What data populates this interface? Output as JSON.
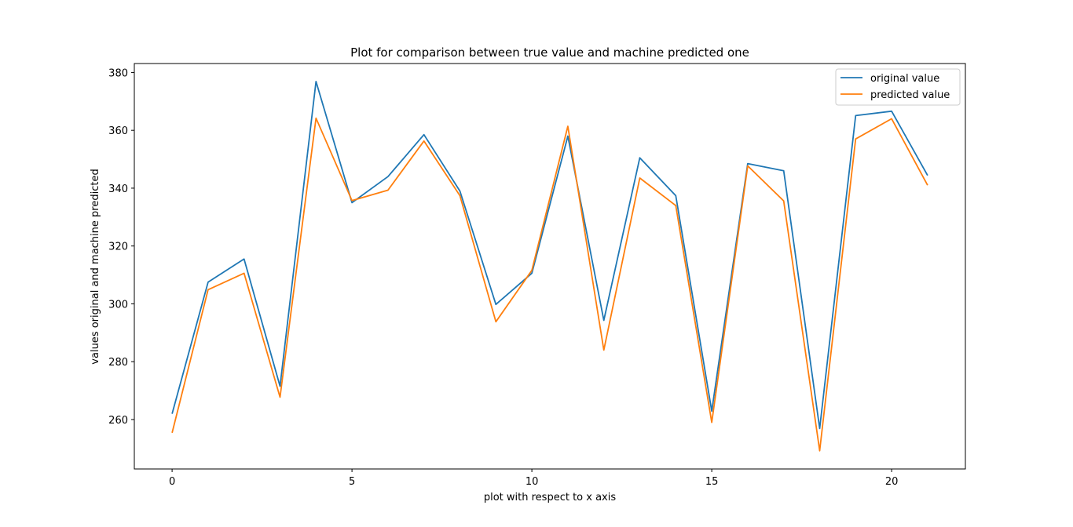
{
  "chart_data": {
    "type": "line",
    "title": "Plot for comparison between true value and machine predicted one",
    "xlabel": "plot with respect to x axis",
    "ylabel": "values original and machine predicted",
    "x": [
      0,
      1,
      2,
      3,
      4,
      5,
      6,
      7,
      8,
      9,
      10,
      11,
      12,
      13,
      14,
      15,
      16,
      17,
      18,
      19,
      20,
      21
    ],
    "xlim": [
      -1.05,
      22.05
    ],
    "ylim": [
      242.9,
      383.1
    ],
    "xticks": [
      0,
      5,
      10,
      15,
      20
    ],
    "yticks": [
      260,
      280,
      300,
      320,
      340,
      360,
      380
    ],
    "xtick_labels": [
      "0",
      "5",
      "10",
      "15",
      "20"
    ],
    "ytick_labels": [
      "260",
      "280",
      "300",
      "320",
      "340",
      "360",
      "380"
    ],
    "grid": false,
    "legend_position": "top-right",
    "series": [
      {
        "name": "original value",
        "color": "#1f77b4",
        "values": [
          262.0,
          307.5,
          315.5,
          271.5,
          376.9,
          335.0,
          344.0,
          358.5,
          339.0,
          299.8,
          310.6,
          358.0,
          294.3,
          350.5,
          337.4,
          262.9,
          348.5,
          346.0,
          256.9,
          365.1,
          366.6,
          344.4
        ]
      },
      {
        "name": "predicted value",
        "color": "#ff7f0e",
        "values": [
          255.4,
          304.9,
          310.6,
          267.7,
          364.2,
          335.7,
          339.3,
          356.3,
          337.4,
          293.8,
          311.6,
          361.4,
          284.0,
          343.5,
          334.0,
          259.0,
          347.7,
          335.6,
          249.2,
          357.0,
          364.0,
          341.0
        ]
      }
    ]
  }
}
